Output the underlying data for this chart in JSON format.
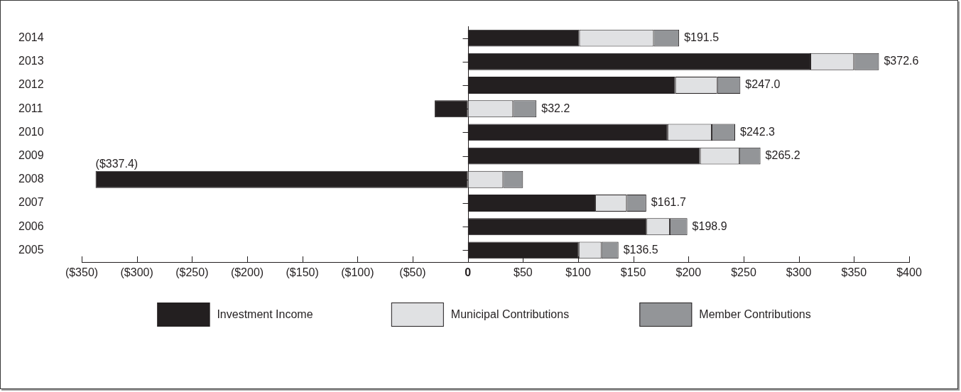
{
  "chart_data": {
    "type": "bar",
    "orientation": "horizontal",
    "stacked": true,
    "categories": [
      "2014",
      "2013",
      "2012",
      "2011",
      "2010",
      "2009",
      "2008",
      "2007",
      "2006",
      "2005"
    ],
    "series": [
      {
        "name": "Investment Income",
        "color": "#231f20",
        "values": [
          101,
          310.5,
          188,
          -30,
          181,
          210.5,
          -337.4,
          115.5,
          162,
          100.5
        ],
        "value_labels": [
          null,
          null,
          null,
          null,
          null,
          null,
          "($337.4)",
          null,
          null,
          null
        ]
      },
      {
        "name": "Municipal Contributions",
        "color": "#e0e1e3",
        "values": [
          67.5,
          39.5,
          38,
          41,
          40,
          35.5,
          32,
          28.5,
          21,
          20.5
        ]
      },
      {
        "name": "Member Contributions",
        "color": "#939598",
        "values": [
          23,
          22.6,
          21,
          21.2,
          21.3,
          19.2,
          18,
          17.7,
          15.9,
          15.5
        ]
      }
    ],
    "totals": [
      "$191.5",
      "$372.6",
      "$247.0",
      "$32.2",
      "$242.3",
      "$265.2",
      null,
      "$161.7",
      "$198.9",
      "$136.5"
    ],
    "xlim": [
      -350,
      400
    ],
    "xticks": [
      {
        "value": -350,
        "label": "($350)"
      },
      {
        "value": -300,
        "label": "($300)"
      },
      {
        "value": -250,
        "label": "($250)"
      },
      {
        "value": -200,
        "label": "($200)"
      },
      {
        "value": -150,
        "label": "($150)"
      },
      {
        "value": -100,
        "label": "($100)"
      },
      {
        "value": -50,
        "label": "($50)"
      },
      0,
      {
        "value": 50,
        "label": "$50"
      },
      {
        "value": 100,
        "label": "$100"
      },
      {
        "value": 150,
        "label": "$150"
      },
      {
        "value": 200,
        "label": "$200"
      },
      {
        "value": 250,
        "label": "$250"
      },
      {
        "value": 300,
        "label": "$300"
      },
      {
        "value": 350,
        "label": "$350"
      },
      {
        "value": 400,
        "label": "$400"
      }
    ],
    "legend": "bottom"
  }
}
